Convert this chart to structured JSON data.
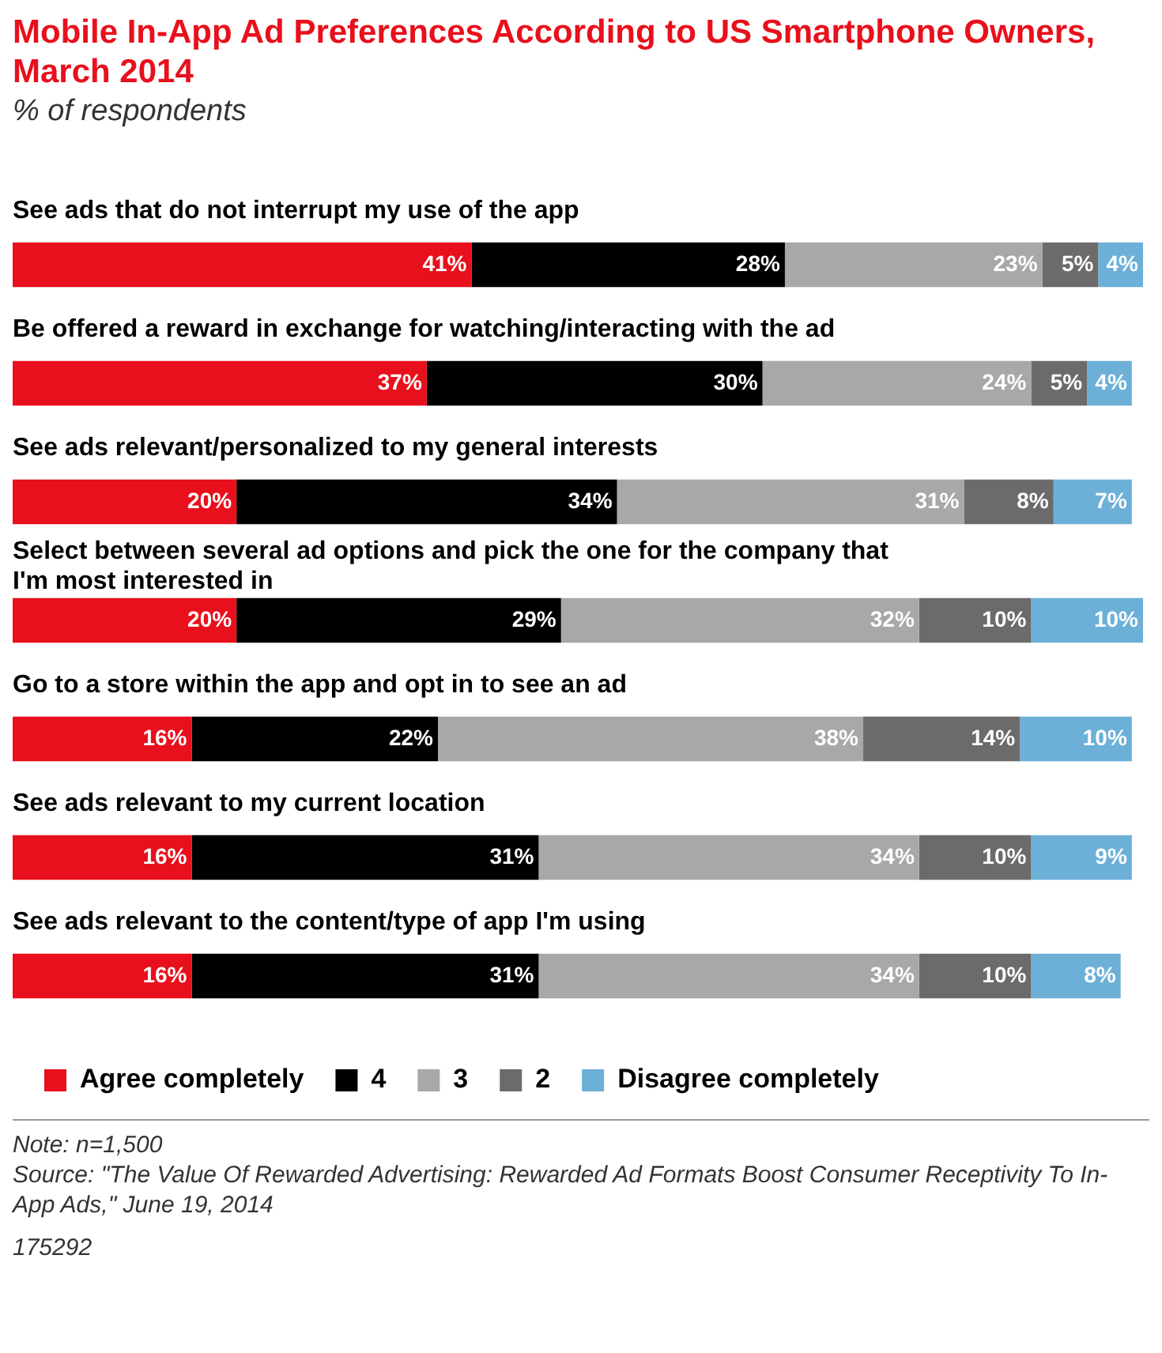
{
  "chart_data": {
    "type": "bar",
    "orientation": "horizontal",
    "stacked": true,
    "title": "Mobile In-App Ad Preferences According to US Smartphone Owners, March 2014",
    "subtitle": "% of respondents",
    "categories": [
      "See ads that do not interrupt my use of the app",
      "Be offered a reward in exchange for watching/interacting with the ad",
      "See ads relevant/personalized to my general interests",
      "Select between several ad options and pick the one for the company that I'm most interested in",
      "Go to a store within the app and opt in to see an ad",
      "See ads relevant to my current location",
      "See ads relevant to the content/type of app I'm using"
    ],
    "series": [
      {
        "name": "Agree completely",
        "color": "#e8101c",
        "values": [
          41,
          37,
          20,
          20,
          16,
          16,
          16
        ],
        "value_labels": [
          "41%",
          "37%",
          "20%",
          "20%",
          "16%",
          "16%",
          "16%"
        ]
      },
      {
        "name": "4",
        "color": "#000000",
        "values": [
          28,
          30,
          34,
          29,
          22,
          31,
          31
        ],
        "value_labels": [
          "28%",
          "30%",
          "34%",
          "29%",
          "22%",
          "31%",
          "31%"
        ]
      },
      {
        "name": "3",
        "color": "#a8a8a8",
        "values": [
          23,
          24,
          31,
          32,
          38,
          34,
          34
        ],
        "value_labels": [
          "23%",
          "24%",
          "31%",
          "32%",
          "38%",
          "34%",
          "34%"
        ]
      },
      {
        "name": "2",
        "color": "#6b6b6b",
        "values": [
          5,
          5,
          8,
          10,
          14,
          10,
          10
        ],
        "value_labels": [
          "5%",
          "5%",
          "8%",
          "10%",
          "14%",
          "10%",
          "10%"
        ]
      },
      {
        "name": "Disagree completely",
        "color": "#6cb0d8",
        "values": [
          4,
          4,
          7,
          10,
          10,
          9,
          8
        ],
        "value_labels": [
          "4%",
          "4%",
          "7%",
          "10%",
          "10%",
          "9%",
          "8%"
        ]
      }
    ],
    "xlim": [
      0,
      101
    ],
    "tick_labels": "y",
    "grid": false,
    "legend": "bottom left",
    "annotations": [
      "Note: n=1,500",
      "Source: \"The Value Of Rewarded Advertising: Rewarded Ad Formats Boost Consumer Receptivity To In-App Ads,\" June 19, 2014",
      "175292"
    ]
  }
}
